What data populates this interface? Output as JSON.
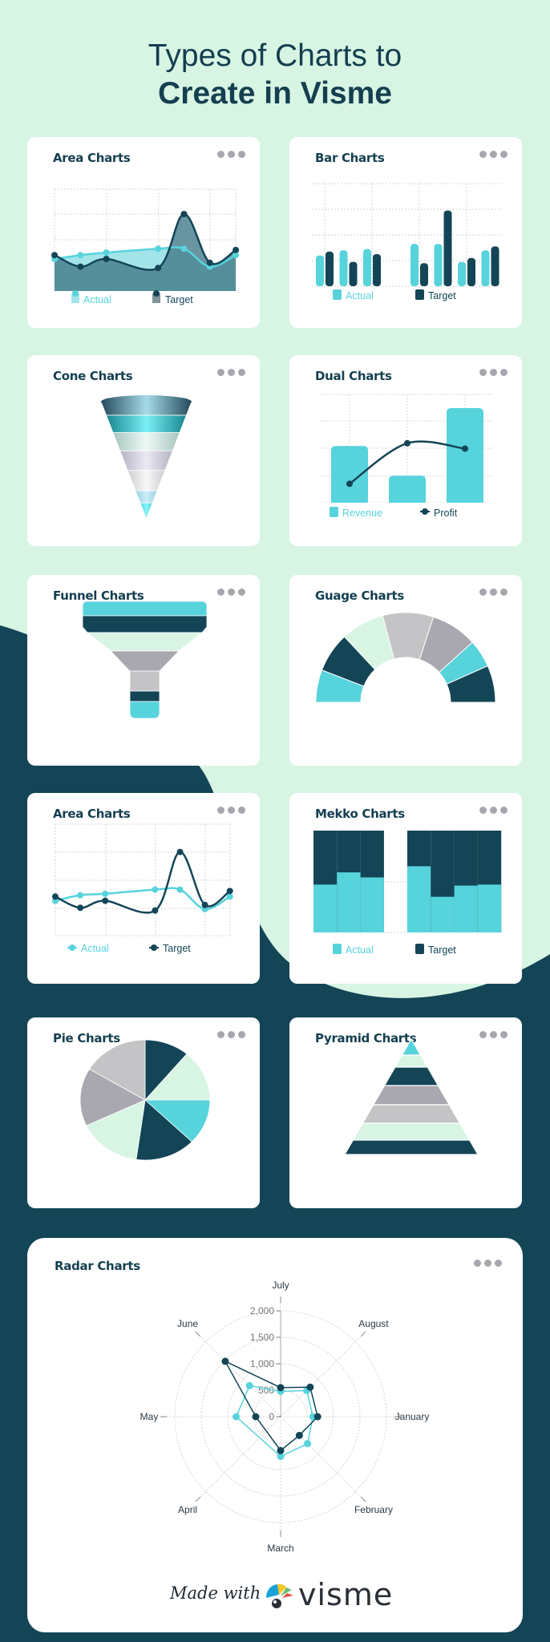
{
  "header": {
    "line1": "Types of Charts to",
    "line2": "Create in Visme"
  },
  "footer": {
    "made_with": "Made with",
    "brand": "visme"
  },
  "colors": {
    "background_top": "#d8f5e4",
    "background_bottom": "#134557",
    "navy": "#134557",
    "teal": "#57d3dc",
    "mint": "#d8f5e4",
    "lavender": "#a9a8b0",
    "light_gray": "#c4c4c6",
    "title_text": "#143f50",
    "menu_dots": "#a7a6ae"
  },
  "icons": {
    "card_menu": "more-options-icon"
  },
  "chart_data": [
    {
      "title": "Area Charts",
      "type": "area",
      "x": [
        1,
        2,
        3,
        5,
        6,
        7,
        8
      ],
      "xlim": [
        1,
        8
      ],
      "ylim": [
        0,
        4
      ],
      "grid": true,
      "legend": "bottom",
      "series": [
        {
          "name": "Actual",
          "color": "#57d3dc",
          "values": [
            1.25,
            1.4,
            1.5,
            1.65,
            1.65,
            0.95,
            1.4
          ]
        },
        {
          "name": "Target",
          "color": "#134557",
          "values": [
            1.4,
            0.95,
            1.25,
            0.9,
            3.0,
            1.1,
            1.6
          ]
        }
      ]
    },
    {
      "title": "Bar Charts",
      "type": "bar",
      "x": [
        1,
        2,
        3,
        4,
        5,
        6,
        7,
        8
      ],
      "ylim": [
        0,
        4
      ],
      "grid": true,
      "legend": "bottom",
      "series": [
        {
          "name": "Actual",
          "color": "#57d3dc",
          "values": [
            1.2,
            1.4,
            1.45,
            null,
            1.65,
            1.65,
            0.95,
            1.4
          ]
        },
        {
          "name": "Target",
          "color": "#134557",
          "values": [
            1.35,
            0.95,
            1.25,
            null,
            0.9,
            2.95,
            1.1,
            1.55
          ]
        }
      ]
    },
    {
      "title": "Cone Charts",
      "type": "cone",
      "segments": [
        {
          "value": 18,
          "color": "#2e5a6e"
        },
        {
          "value": 23,
          "color": "#1b9ba8"
        },
        {
          "value": 24,
          "color": "#b5d3cb"
        },
        {
          "value": 26,
          "color": "#c8c6d6"
        },
        {
          "value": 27,
          "color": "#dcdcdf"
        },
        {
          "value": 16,
          "color": "#a8dcea"
        },
        {
          "value": 21,
          "color": "#5de3ef"
        }
      ]
    },
    {
      "title": "Dual Charts",
      "type": "bar+line",
      "x": [
        1,
        2,
        3
      ],
      "ylim": [
        0,
        4
      ],
      "grid": true,
      "legend": "bottom",
      "series": [
        {
          "name": "Revenue",
          "type": "bar",
          "color": "#57d3dc",
          "values": [
            2.1,
            1.0,
            3.5
          ]
        },
        {
          "name": "Profit",
          "type": "line",
          "color": "#134557",
          "values": [
            0.7,
            2.2,
            2.0
          ]
        }
      ]
    },
    {
      "title": "Funnel Charts",
      "type": "funnel",
      "segments": [
        {
          "value": 18,
          "color": "#57d3dc"
        },
        {
          "value": 21,
          "color": "#134557"
        },
        {
          "value": 23,
          "color": "#d8f5e4"
        },
        {
          "value": 25,
          "color": "#a9a8b0"
        },
        {
          "value": 25,
          "color": "#c4c4c6"
        },
        {
          "value": 13,
          "color": "#134557"
        },
        {
          "value": 21,
          "color": "#57d3dc"
        }
      ]
    },
    {
      "title": "Guage Charts",
      "type": "gauge",
      "segments": [
        {
          "value": 11.7,
          "color": "#57d3dc"
        },
        {
          "value": 14.4,
          "color": "#134557"
        },
        {
          "value": 15.6,
          "color": "#d8f5e4"
        },
        {
          "value": 18.3,
          "color": "#c4c4c6"
        },
        {
          "value": 16.7,
          "color": "#a9a8b0"
        },
        {
          "value": 10.0,
          "color": "#57d3dc"
        },
        {
          "value": 13.3,
          "color": "#134557"
        }
      ]
    },
    {
      "title": "Area Charts",
      "type": "line",
      "x": [
        1,
        2,
        3,
        5,
        6,
        7,
        8
      ],
      "xlim": [
        1,
        8
      ],
      "ylim": [
        0,
        4
      ],
      "grid": true,
      "legend": "bottom",
      "series": [
        {
          "name": "Actual",
          "color": "#57d3dc",
          "values": [
            1.25,
            1.45,
            1.5,
            1.65,
            1.65,
            0.95,
            1.4
          ]
        },
        {
          "name": "Target",
          "color": "#134557",
          "values": [
            1.4,
            1.0,
            1.25,
            0.9,
            3.0,
            1.1,
            1.6
          ]
        }
      ]
    },
    {
      "title": "Mekko Charts",
      "type": "mekko",
      "ylim": [
        0,
        100
      ],
      "legend": "bottom",
      "groups": [
        [
          47,
          59,
          54
        ],
        [
          65,
          35,
          46,
          47
        ]
      ],
      "series": [
        {
          "name": "Actual",
          "color": "#57d3dc"
        },
        {
          "name": "Target",
          "color": "#134557"
        }
      ]
    },
    {
      "title": "Pie Charts",
      "type": "pie",
      "slices": [
        {
          "value": 11.1,
          "color": "#134557"
        },
        {
          "value": 13.9,
          "color": "#d8f5e4"
        },
        {
          "value": 12.2,
          "color": "#57d3dc"
        },
        {
          "value": 15.0,
          "color": "#134557"
        },
        {
          "value": 15.8,
          "color": "#d8f5e4"
        },
        {
          "value": 15.6,
          "color": "#a9a8b0"
        },
        {
          "value": 16.4,
          "color": "#c4c4c6"
        }
      ]
    },
    {
      "title": "Pyramid Charts",
      "type": "pyramid",
      "segments": [
        {
          "value": 20,
          "color": "#57d3dc"
        },
        {
          "value": 15,
          "color": "#d8f5e4"
        },
        {
          "value": 23,
          "color": "#134557"
        },
        {
          "value": 24,
          "color": "#a9a8b0"
        },
        {
          "value": 23,
          "color": "#c4c4c6"
        },
        {
          "value": 21,
          "color": "#d8f5e4"
        },
        {
          "value": 18,
          "color": "#134557"
        }
      ]
    },
    {
      "title": "Radar Charts",
      "type": "radar",
      "rlim": [
        0,
        2000
      ],
      "r_tick_labels": [
        "0",
        "500",
        "1,000",
        "1,500",
        "2,000"
      ],
      "categories": [
        "January",
        "February",
        "March",
        "April",
        "May",
        "June",
        "July",
        "August"
      ],
      "series": [
        {
          "color": "#57d3dc",
          "values": [
            610,
            720,
            750,
            null,
            840,
            830,
            480,
            700
          ]
        },
        {
          "color": "#134557",
          "values": [
            700,
            500,
            640,
            null,
            470,
            1480,
            550,
            790
          ]
        }
      ]
    }
  ]
}
